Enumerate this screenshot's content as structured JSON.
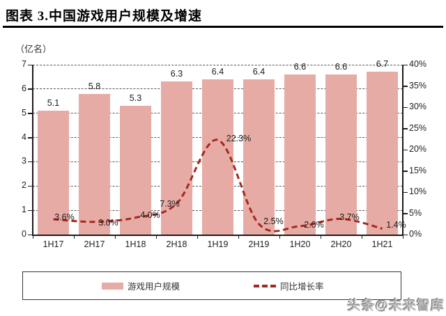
{
  "header": {
    "title": "图表 3.中国游戏用户规模及增速"
  },
  "watermark": "头条@未来智库",
  "chart_data": {
    "type": "bar",
    "subtype": "bar-line-combo",
    "title": "中国游戏用户规模及增速",
    "unit_label": "（亿名）",
    "categories": [
      "1H17",
      "2H17",
      "1H18",
      "2H18",
      "1H19",
      "2H19",
      "1H20",
      "2H20",
      "1H21"
    ],
    "series": [
      {
        "name": "游戏用户规模",
        "type": "bar",
        "axis": "left",
        "values": [
          5.1,
          5.8,
          5.3,
          6.3,
          6.4,
          6.4,
          6.6,
          6.6,
          6.7
        ],
        "labels": [
          "5.1",
          "5.8",
          "5.3",
          "6.3",
          "6.4",
          "6.4",
          "6.6",
          "6.6",
          "6.7"
        ],
        "color": "#e7aba5"
      },
      {
        "name": "同比增长率",
        "type": "line",
        "axis": "right",
        "values": [
          3.6,
          3.0,
          4.0,
          7.3,
          22.3,
          2.5,
          2.0,
          3.7,
          1.4
        ],
        "labels": [
          "3.6%",
          "3.0%",
          "4.0%",
          "7.3%",
          "22.3%",
          "2.5%",
          "2.0%",
          "3.7%",
          "1.4%"
        ],
        "color": "#a5271f",
        "style": "dashed"
      }
    ],
    "left_axis": {
      "min": 0,
      "max": 7,
      "ticks": [
        "0",
        "1",
        "2",
        "3",
        "4",
        "5",
        "6",
        "7"
      ]
    },
    "right_axis": {
      "min": 0,
      "max": 40,
      "ticks": [
        "0%",
        "5%",
        "10%",
        "15%",
        "20%",
        "25%",
        "30%",
        "35%",
        "40%"
      ]
    },
    "legend": {
      "position": "bottom",
      "entries": [
        "游戏用户规模",
        "同比增长率"
      ]
    },
    "grid": "horizontal-dashed"
  },
  "colors": {
    "bar": "#e7aba5",
    "line": "#a5271f",
    "axis": "#1a1a1a",
    "title": "#000000",
    "watermark": "#bdbdbd"
  }
}
